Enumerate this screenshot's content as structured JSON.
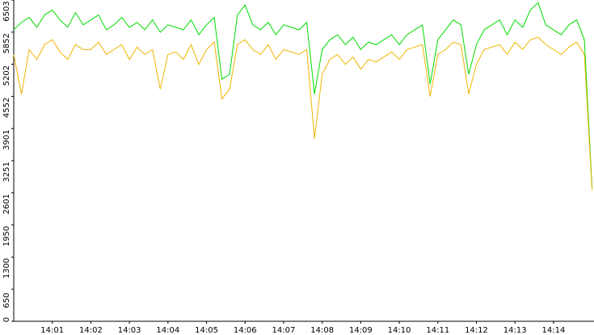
{
  "chart_data": {
    "type": "line",
    "x": [
      0,
      0.2,
      0.4,
      0.6,
      0.8,
      1,
      1.2,
      1.4,
      1.6,
      1.8,
      2,
      2.2,
      2.4,
      2.6,
      2.8,
      3,
      3.2,
      3.4,
      3.6,
      3.8,
      4,
      4.2,
      4.4,
      4.6,
      4.8,
      5,
      5.2,
      5.4,
      5.6,
      5.8,
      6,
      6.2,
      6.4,
      6.6,
      6.8,
      7,
      7.2,
      7.4,
      7.6,
      7.8,
      8,
      8.2,
      8.4,
      8.6,
      8.8,
      9,
      9.2,
      9.4,
      9.6,
      9.8,
      10,
      10.2,
      10.4,
      10.6,
      10.8,
      11,
      11.2,
      11.4,
      11.6,
      11.8,
      12,
      12.2,
      12.4,
      12.6,
      12.8,
      13,
      13.2,
      13.4,
      13.6,
      13.8,
      14,
      14.2,
      14.4,
      14.6,
      14.8,
      15
    ],
    "series": [
      {
        "color": "#00dd00",
        "values": [
          5900,
          6050,
          6150,
          5950,
          6200,
          6300,
          6100,
          5950,
          6250,
          6000,
          6100,
          6200,
          5900,
          6000,
          6150,
          5950,
          6050,
          5900,
          6100,
          5850,
          6000,
          5950,
          5900,
          6100,
          5800,
          6000,
          6150,
          4900,
          5000,
          6200,
          6400,
          6000,
          5900,
          6050,
          5800,
          6000,
          5950,
          5900,
          6050,
          4600,
          5500,
          5700,
          5800,
          5600,
          5750,
          5500,
          5650,
          5600,
          5700,
          5800,
          5600,
          5800,
          5900,
          6000,
          4800,
          5700,
          5900,
          6100,
          6000,
          5000,
          5600,
          5900,
          6000,
          6100,
          5800,
          6100,
          5950,
          6300,
          6450,
          6000,
          5900,
          5800,
          6000,
          6100,
          5700,
          2700
        ]
      },
      {
        "color": "#f0b400",
        "values": [
          5400,
          4600,
          5500,
          5300,
          5600,
          5700,
          5450,
          5300,
          5600,
          5500,
          5500,
          5650,
          5400,
          5500,
          5600,
          5300,
          5550,
          5400,
          5500,
          4700,
          5400,
          5450,
          5300,
          5600,
          5200,
          5500,
          5650,
          4500,
          4700,
          5600,
          5700,
          5500,
          5400,
          5600,
          5300,
          5500,
          5450,
          5400,
          5500,
          3700,
          5000,
          5300,
          5400,
          5200,
          5350,
          5100,
          5300,
          5250,
          5350,
          5450,
          5300,
          5500,
          5550,
          5600,
          4550,
          5400,
          5500,
          5650,
          5600,
          4600,
          5200,
          5500,
          5550,
          5600,
          5400,
          5650,
          5500,
          5700,
          5750,
          5600,
          5500,
          5400,
          5550,
          5650,
          5400,
          2650
        ]
      }
    ],
    "xlim": [
      0,
      15.05
    ],
    "xticks": [
      {
        "value": 1,
        "label": "14:01"
      },
      {
        "value": 2,
        "label": "14:02"
      },
      {
        "value": 3,
        "label": "14:03"
      },
      {
        "value": 4,
        "label": "14:04"
      },
      {
        "value": 5,
        "label": "14:05"
      },
      {
        "value": 6,
        "label": "14:06"
      },
      {
        "value": 7,
        "label": "14:07"
      },
      {
        "value": 8,
        "label": "14:08"
      },
      {
        "value": 9,
        "label": "14:09"
      },
      {
        "value": 10,
        "label": "14:10"
      },
      {
        "value": 11,
        "label": "14:11"
      },
      {
        "value": 12,
        "label": "14:12"
      },
      {
        "value": 13,
        "label": "14:13"
      },
      {
        "value": 14,
        "label": "14:14"
      }
    ],
    "ylim": [
      0,
      6503
    ],
    "yticks": [
      0,
      650,
      1300,
      1950,
      2601,
      3251,
      3901,
      4552,
      5202,
      5852,
      6503
    ]
  }
}
